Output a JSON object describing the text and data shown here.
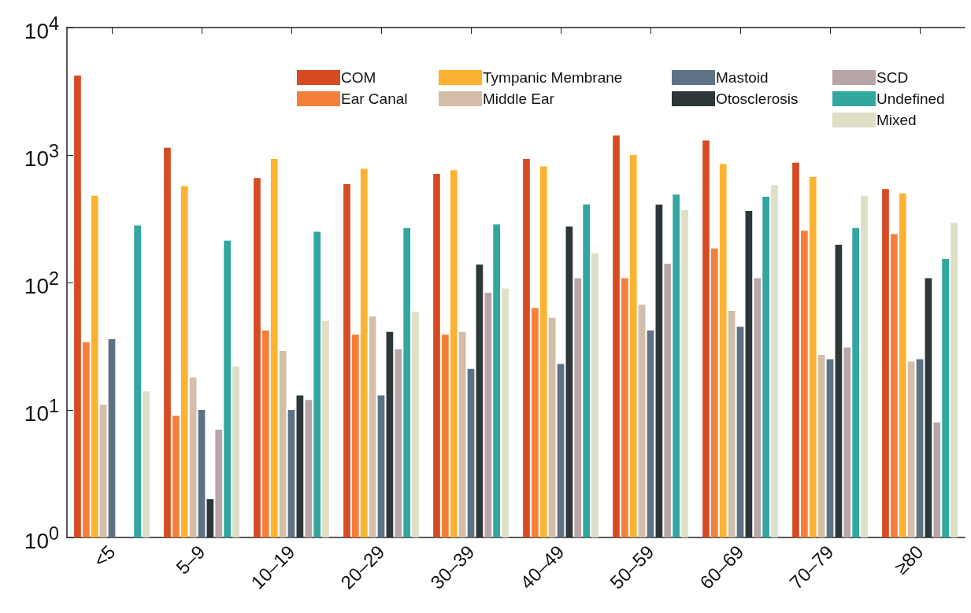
{
  "chart_data": {
    "type": "bar",
    "log": "y",
    "grid": false,
    "legend": "top right",
    "categories": [
      "<5",
      "5–9",
      "10–19",
      "20–29",
      "30–39",
      "40–49",
      "50–59",
      "60–69",
      "70–79",
      "≥80"
    ],
    "ylim": [
      1,
      10000
    ],
    "yticks": [
      {
        "value": 1,
        "label": "10$^{0}$"
      },
      {
        "value": 10,
        "label": "10$^{1}$"
      },
      {
        "value": 100,
        "label": "10$^{2}$"
      },
      {
        "value": 1000,
        "label": "10$^{3}$"
      },
      {
        "value": 10000,
        "label": "10$^{4}$"
      }
    ],
    "series": [
      {
        "name": "COM",
        "color": "#d64b22",
        "values": [
          4200,
          1140,
          660,
          590,
          710,
          930,
          1420,
          1300,
          870,
          540
        ]
      },
      {
        "name": "Ear Canal",
        "color": "#f47f3b",
        "values": [
          34,
          9,
          42,
          39,
          39,
          63,
          108,
          185,
          255,
          240
        ]
      },
      {
        "name": "Tympanic Membrane",
        "color": "#fdb232",
        "values": [
          480,
          570,
          930,
          780,
          760,
          815,
          1000,
          850,
          675,
          500
        ]
      },
      {
        "name": "Middle Ear",
        "color": "#d4bda9",
        "values": [
          11,
          18,
          29,
          54,
          41,
          53,
          67,
          60,
          27,
          24
        ]
      },
      {
        "name": "Mastoid",
        "color": "#5d7285",
        "values": [
          36,
          10,
          10,
          13,
          21,
          23,
          42,
          45,
          25,
          25
        ]
      },
      {
        "name": "Otosclerosis",
        "color": "#2d3638",
        "values": [
          null,
          2,
          13,
          41,
          138,
          275,
          408,
          365,
          198,
          108
        ]
      },
      {
        "name": "SCD",
        "color": "#b8a5a8",
        "values": [
          null,
          7,
          12,
          30,
          83,
          108,
          140,
          108,
          31,
          8
        ]
      },
      {
        "name": "Undefined",
        "color": "#30a79f",
        "values": [
          280,
          213,
          250,
          268,
          285,
          410,
          490,
          470,
          268,
          153
        ]
      },
      {
        "name": "Mixed",
        "color": "#dfdfc6",
        "values": [
          14,
          22,
          50,
          59,
          90,
          170,
          370,
          580,
          480,
          295
        ]
      }
    ]
  }
}
